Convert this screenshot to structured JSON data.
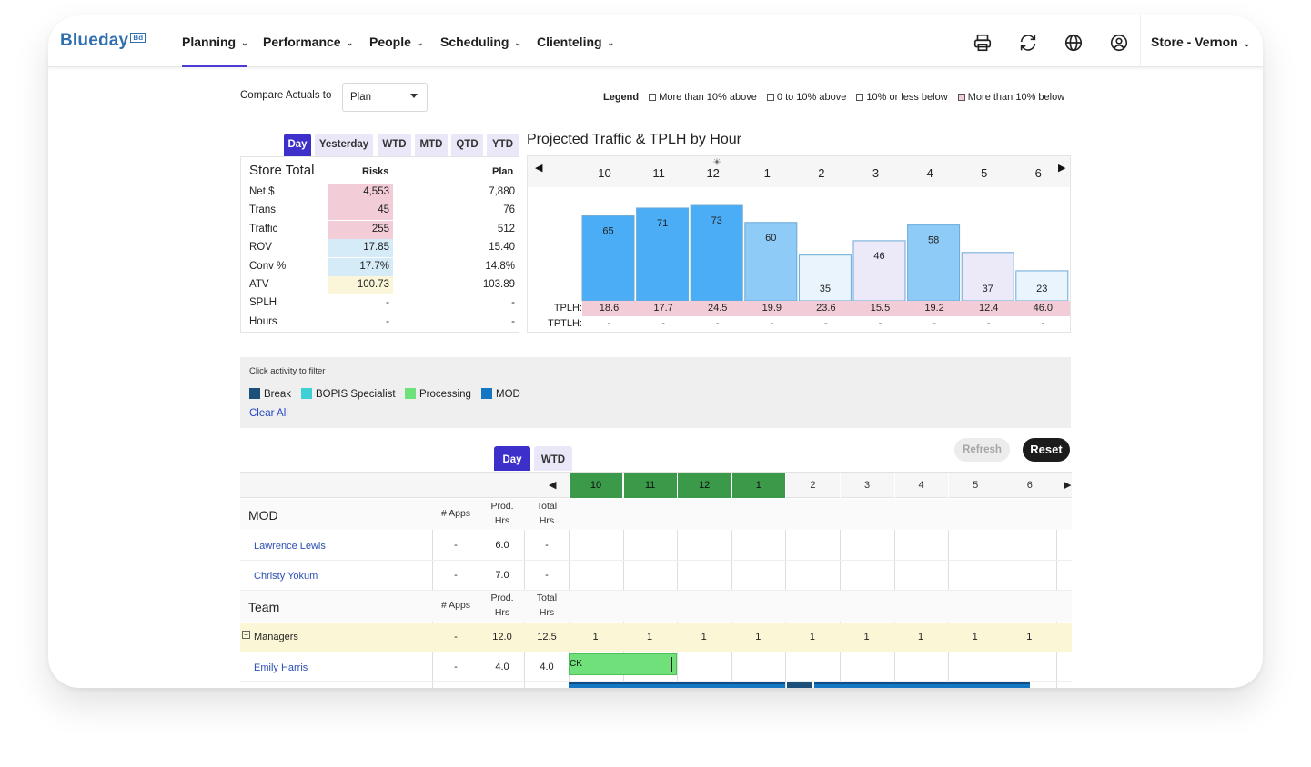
{
  "app": {
    "logo": "Blueday",
    "logo_badge": "Bd"
  },
  "nav": {
    "items": [
      {
        "label": "Planning"
      },
      {
        "label": "Performance"
      },
      {
        "label": "People"
      },
      {
        "label": "Scheduling"
      },
      {
        "label": "Clienteling"
      }
    ],
    "store": "Store - Vernon",
    "icons": [
      "printer-icon",
      "refresh-icon",
      "globe-icon",
      "user-icon"
    ]
  },
  "compare": {
    "label": "Compare Actuals to",
    "value": "Plan"
  },
  "legend": {
    "title": "Legend",
    "items": [
      {
        "label": "More than 10% above",
        "color": "#ffffff"
      },
      {
        "label": "0 to 10% above",
        "color": "#ffffff"
      },
      {
        "label": "10% or less below",
        "color": "#ffffff"
      },
      {
        "label": "More than 10% below",
        "color": "#f2cdd8"
      }
    ]
  },
  "period_tabs": [
    "Day",
    "Yesterday",
    "WTD",
    "MTD",
    "QTD",
    "YTD"
  ],
  "store_total": {
    "title": "Store Total",
    "risk_header": "Risks",
    "plan_header": "Plan",
    "rows": [
      {
        "label": "Net $",
        "risk": "4,553",
        "plan": "7,880",
        "color": "#f2cdd8"
      },
      {
        "label": "Trans",
        "risk": "45",
        "plan": "76",
        "color": "#f2cdd8"
      },
      {
        "label": "Traffic",
        "risk": "255",
        "plan": "512",
        "color": "#f2cdd8"
      },
      {
        "label": "ROV",
        "risk": "17.85",
        "plan": "15.40",
        "color": "#d6ebf8"
      },
      {
        "label": "Conv %",
        "risk": "17.7%",
        "plan": "14.8%",
        "color": "#d6ebf8"
      },
      {
        "label": "ATV",
        "risk": "100.73",
        "plan": "103.89",
        "color": "#fbf6d9"
      },
      {
        "label": "SPLH",
        "risk": "-",
        "plan": "-",
        "color": "#ffffff"
      },
      {
        "label": "Hours",
        "risk": "-",
        "plan": "-",
        "color": "#ffffff"
      }
    ]
  },
  "projected": {
    "title": "Projected Traffic & TPLH by Hour",
    "tplh_label": "TPLH:",
    "tptlh_label": "TPTLH:",
    "hours": [
      "10",
      "11",
      "12",
      "1",
      "2",
      "3",
      "4",
      "5",
      "6"
    ],
    "sun_icon": "sun-icon"
  },
  "chart_data": {
    "type": "bar",
    "title": "Projected Traffic & TPLH by Hour",
    "categories": [
      "10",
      "11",
      "12",
      "1",
      "2",
      "3",
      "4",
      "5",
      "6"
    ],
    "series": [
      {
        "name": "",
        "values": [
          65,
          71,
          73,
          60,
          35,
          46,
          58,
          37,
          23
        ]
      }
    ],
    "bar_colors": [
      "#4aadf5",
      "#4aadf5",
      "#4aadf5",
      "#8fcbf7",
      "#e9f4fc",
      "#ece9f9",
      "#8fcbf7",
      "#ece9f9",
      "#e9f4fc"
    ],
    "tplh": [
      "18.6",
      "17.7",
      "24.5",
      "19.9",
      "23.6",
      "15.5",
      "19.2",
      "12.4",
      "46.0"
    ],
    "tptlh": [
      "-",
      "-",
      "-",
      "-",
      "-",
      "-",
      "-",
      "-",
      "-"
    ],
    "ylim": [
      0,
      80
    ]
  },
  "filter": {
    "hint": "Click activity to filter",
    "activities": [
      {
        "label": "Break",
        "color": "#1c4f7a"
      },
      {
        "label": "BOPIS Specialist",
        "color": "#3fd0d6"
      },
      {
        "label": "Processing",
        "color": "#6fe07a"
      },
      {
        "label": "MOD",
        "color": "#1576c2"
      }
    ],
    "clear": "Clear All"
  },
  "schedule": {
    "tabs": [
      "Day",
      "WTD"
    ],
    "refresh": "Refresh",
    "reset": "Reset",
    "hours": [
      "10",
      "11",
      "12",
      "1",
      "2",
      "3",
      "4",
      "5",
      "6"
    ],
    "active_hours": 4,
    "col_apps": "# Apps",
    "col_prod": "Prod. Hrs",
    "col_total": "Total Hrs",
    "mod": {
      "title": "MOD",
      "rows": [
        {
          "name": "Lawrence Lewis",
          "apps": "-",
          "prod": "6.0",
          "total": "-"
        },
        {
          "name": "Christy Yokum",
          "apps": "-",
          "prod": "7.0",
          "total": "-"
        }
      ]
    },
    "team": {
      "title": "Team",
      "group": {
        "name": "Managers",
        "apps": "-",
        "prod": "12.0",
        "total": "12.5",
        "counts": [
          "1",
          "1",
          "1",
          "1",
          "1",
          "1",
          "1",
          "1",
          "1"
        ]
      },
      "rows": [
        {
          "name": "Emily Harris",
          "apps": "-",
          "prod": "4.0",
          "total": "4.0",
          "bar_label": "CK"
        }
      ]
    }
  }
}
